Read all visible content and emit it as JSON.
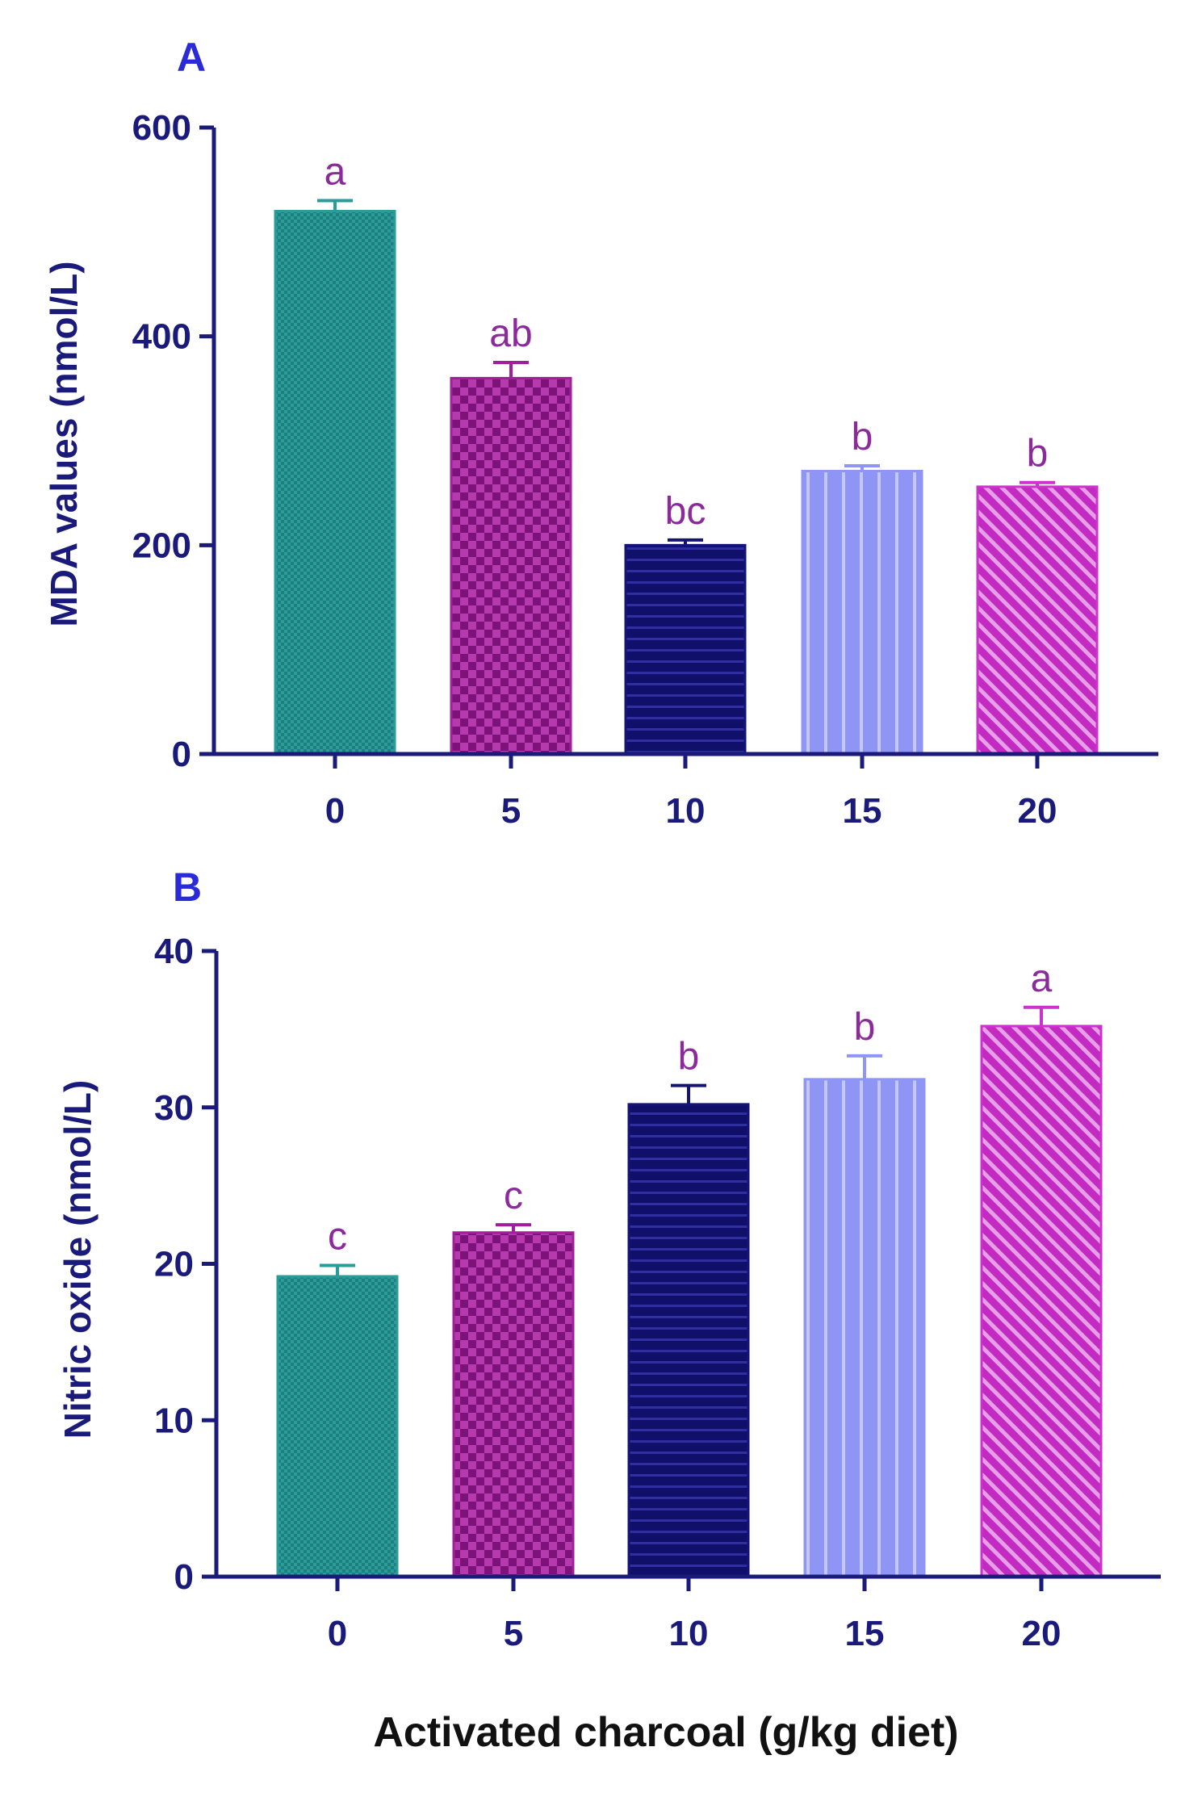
{
  "figure": {
    "shared_xlabel": "Activated charcoal (g/kg diet)"
  },
  "chart_data": [
    {
      "type": "bar",
      "panel_label": "A",
      "title": "",
      "xlabel": "",
      "ylabel": "MDA values (nmol/L)",
      "ylim": [
        0,
        600
      ],
      "yticks": [
        0,
        200,
        400,
        600
      ],
      "categories": [
        "0",
        "5",
        "10",
        "15",
        "20"
      ],
      "values": [
        520,
        360,
        200,
        271,
        256
      ],
      "errors": [
        10,
        15,
        5,
        5,
        4
      ],
      "significance_labels": [
        "a",
        "ab",
        "bc",
        "b",
        "b"
      ],
      "bar_colors": [
        "#2a9d9a",
        "#a0209a",
        "#141478",
        "#8f95f5",
        "#cc33cc"
      ],
      "bar_patterns": [
        "fine-check",
        "check",
        "horizontal-lines",
        "vertical-lines",
        "diagonal-lines"
      ],
      "axis_color": "#1a1a7a",
      "label_color": "#8b2a9a"
    },
    {
      "type": "bar",
      "panel_label": "B",
      "title": "",
      "xlabel": "Activated charcoal (g/kg diet)",
      "ylabel": "Nitric oxide (nmol/L)",
      "ylim": [
        0,
        40
      ],
      "yticks": [
        0,
        10,
        20,
        30,
        40
      ],
      "categories": [
        "0",
        "5",
        "10",
        "15",
        "20"
      ],
      "values": [
        19.2,
        22.0,
        30.2,
        31.8,
        35.2
      ],
      "errors": [
        0.7,
        0.5,
        1.2,
        1.5,
        1.2
      ],
      "significance_labels": [
        "c",
        "c",
        "b",
        "b",
        "a"
      ],
      "bar_colors": [
        "#2a9d9a",
        "#a0209a",
        "#141478",
        "#8f95f5",
        "#cc33cc"
      ],
      "bar_patterns": [
        "fine-check",
        "check",
        "horizontal-lines",
        "vertical-lines",
        "diagonal-lines"
      ],
      "axis_color": "#1a1a7a",
      "label_color": "#8b2a9a"
    }
  ]
}
